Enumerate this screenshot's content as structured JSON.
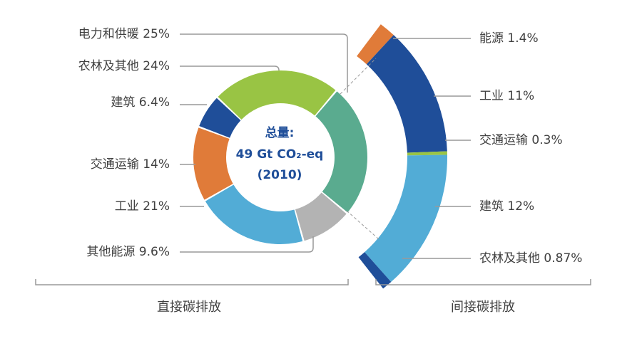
{
  "chart_data": [
    {
      "type": "pie",
      "title": "直接碳排放",
      "center_label": [
        "总量:",
        "49 Gt CO₂-eq",
        "(2010)"
      ],
      "slices": [
        {
          "name": "电力和供暖",
          "value": 25,
          "label": "电力和供暖 25%",
          "color": "#5aab8f"
        },
        {
          "name": "其他能源",
          "value": 9.6,
          "label": "其他能源 9.6%",
          "color": "#b3b3b3"
        },
        {
          "name": "工业",
          "value": 21,
          "label": "工业 21%",
          "color": "#52acd6"
        },
        {
          "name": "交通运输",
          "value": 14,
          "label": "交通运输 14%",
          "color": "#e07b39"
        },
        {
          "name": "建筑",
          "value": 6.4,
          "label": "建筑 6.4%",
          "color": "#1f4e99"
        },
        {
          "name": "农林及其他",
          "value": 24,
          "label": "农林及其他 24%",
          "color": "#99c444"
        }
      ]
    },
    {
      "type": "bar",
      "title": "间接碳排放",
      "segments": [
        {
          "name": "能源",
          "value": 1.4,
          "label": "能源 1.4%",
          "color": "#e07b39"
        },
        {
          "name": "工业",
          "value": 11,
          "label": "工业 11%",
          "color": "#1f4e99"
        },
        {
          "name": "交通运输",
          "value": 0.3,
          "label": "交通运输 0.3%",
          "color": "#99c444"
        },
        {
          "name": "建筑",
          "value": 12,
          "label": "建筑 12%",
          "color": "#52acd6"
        },
        {
          "name": "农林及其他",
          "value": 0.87,
          "label": "农林及其他 0.87%",
          "color": "#1f4e99"
        }
      ]
    }
  ]
}
